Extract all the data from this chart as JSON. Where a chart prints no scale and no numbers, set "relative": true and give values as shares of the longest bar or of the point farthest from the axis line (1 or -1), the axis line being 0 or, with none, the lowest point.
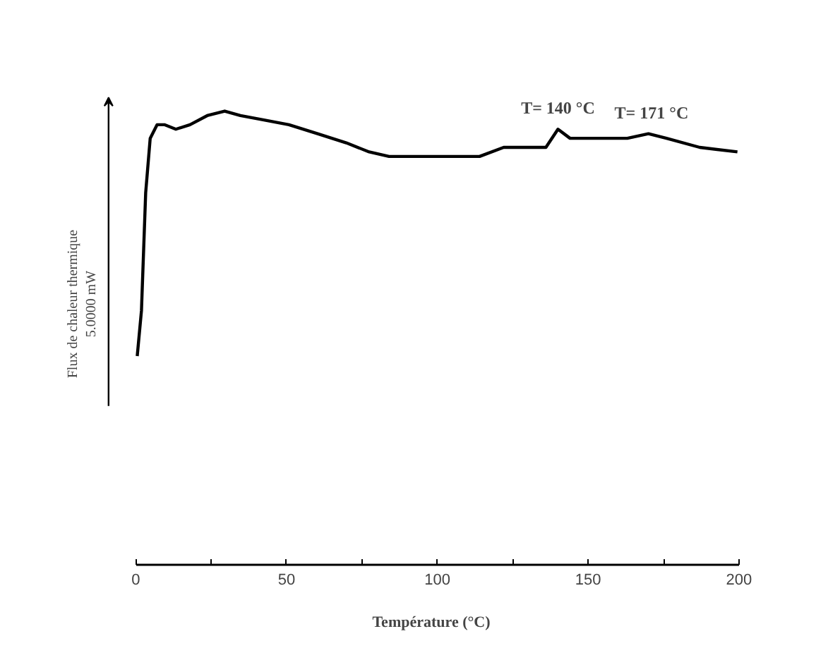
{
  "chart_data": {
    "type": "line",
    "relative": true,
    "xlabel": "Température (°C)",
    "ylabel": "Flux de chaleur thermique\n5.0000 mW",
    "x": [
      0.5,
      1.9,
      3.3,
      4.8,
      7.1,
      9.5,
      13.3,
      18,
      23.7,
      29.5,
      34.7,
      42.8,
      50.8,
      60.3,
      69.8,
      77.4,
      84,
      91.7,
      99.8,
      107.8,
      114,
      122,
      136,
      140,
      144,
      152,
      163,
      170,
      176,
      187,
      199.5
    ],
    "series": [
      {
        "color": "#000000",
        "values": [
          0.46,
          0.56,
          0.82,
          0.94,
          0.97,
          0.97,
          0.96,
          0.97,
          0.99,
          1,
          0.99,
          0.98,
          0.97,
          0.95,
          0.93,
          0.91,
          0.9,
          0.9,
          0.9,
          0.9,
          0.9,
          0.92,
          0.92,
          0.96,
          0.94,
          0.94,
          0.94,
          0.95,
          0.94,
          0.92,
          0.91
        ]
      }
    ],
    "xlim": [
      0,
      200
    ],
    "xticks": [
      0,
      {
        "value": 25,
        "label": null
      },
      50,
      {
        "value": 75,
        "label": null
      },
      100,
      {
        "value": 125,
        "label": null
      },
      150,
      {
        "value": 175,
        "label": null
      },
      200
    ],
    "annotations": [
      {
        "text": "T= 140 °C",
        "x": 140,
        "y": 0.96
      },
      {
        "text": "T= 171 °C",
        "x": 171,
        "y": 0.95
      }
    ],
    "grid": false,
    "marker": "none",
    "line_style": "solid"
  }
}
